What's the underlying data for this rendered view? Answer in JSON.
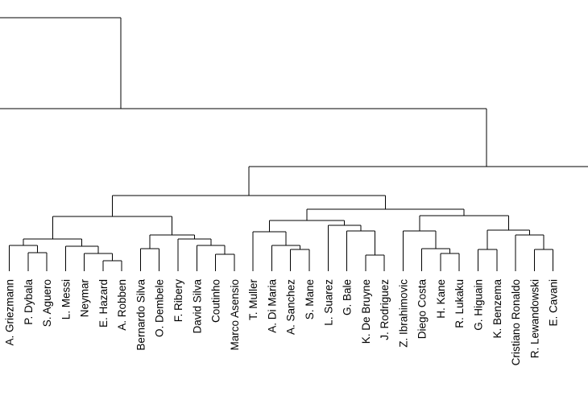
{
  "chart_data": {
    "type": "dendrogram",
    "orientation": "vertical",
    "leaves": [
      "A. Griezmann",
      "P. Dybala",
      "S. Aguero",
      "L. Messi",
      "Neymar",
      "E. Hazard",
      "A. Robben",
      "Bernardo Silva",
      "O. Dembele",
      "F. Ribery",
      "David Silva",
      "Coutinho",
      "Marco Asensio",
      "T. Muller",
      "A. Di Maria",
      "A. Sanchez",
      "S. Mane",
      "L. Suarez",
      "G. Bale",
      "K. De Bruyne",
      "J. Rodriguez",
      "Z. Ibrahimovic",
      "Diego Costa",
      "H. Kane",
      "R. Lukaku",
      "G. Higuain",
      "K. Benzema",
      "Cristiano Ronaldo",
      "R. Lewandowski",
      "E. Cavani"
    ],
    "colors": {
      "line": "#000000",
      "text": "#000000",
      "background": "#ffffff"
    }
  }
}
